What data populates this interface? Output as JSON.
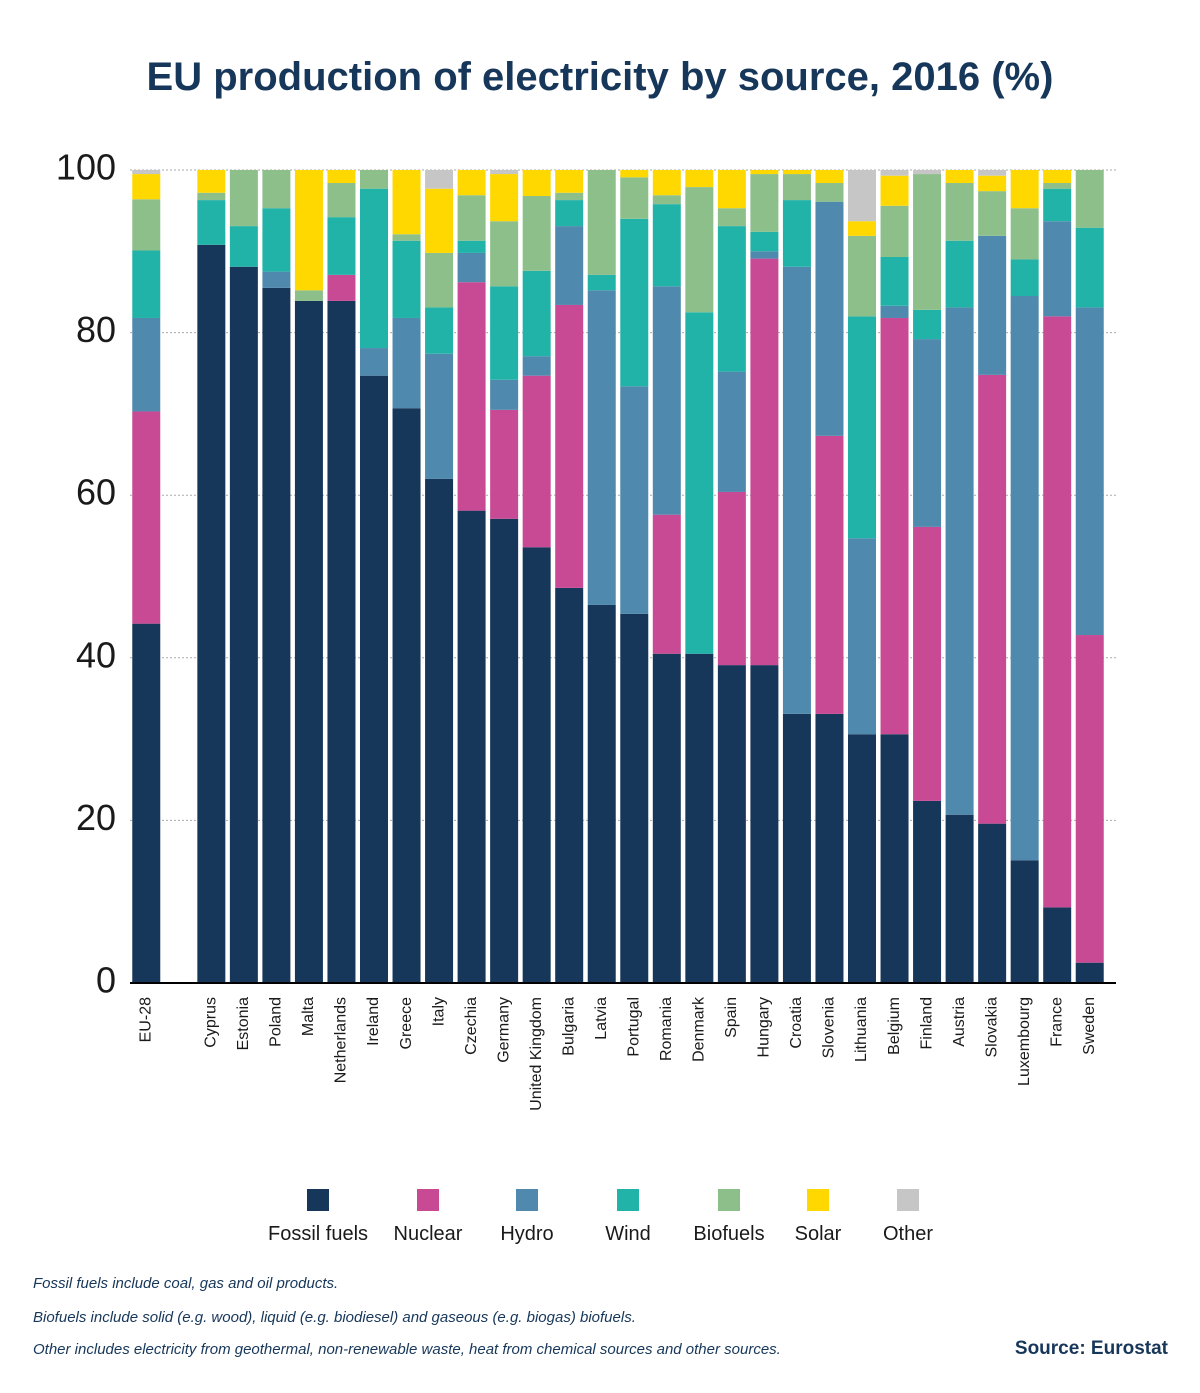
{
  "chart_data": {
    "type": "stacked_bar",
    "title": "EU production of electricity by source, 2016 (%)",
    "categories": [
      "EU-28",
      null,
      "Cyprus",
      "Estonia",
      "Poland",
      "Malta",
      "Netherlands",
      "Ireland",
      "Greece",
      "Italy",
      "Czechia",
      "Germany",
      "United Kingdom",
      "Bulgaria",
      "Latvia",
      "Portugal",
      "Romania",
      "Denmark",
      "Spain",
      "Hungary",
      "Croatia",
      "Slovenia",
      "Lithuania",
      "Belgium",
      "Finland",
      "Austria",
      "Slovakia",
      "Luxembourg",
      "France",
      "Sweden"
    ],
    "series": [
      {
        "name": "Fossil fuels",
        "color": "#17375a",
        "values": [
          44.2,
          null,
          90.8,
          88.1,
          85.5,
          83.9,
          83.9,
          74.7,
          70.7,
          62.0,
          58.1,
          57.1,
          53.6,
          48.6,
          46.5,
          45.4,
          40.5,
          40.5,
          39.1,
          39.1,
          33.1,
          33.1,
          30.6,
          30.6,
          22.4,
          20.7,
          19.6,
          15.1,
          9.3,
          2.5
        ]
      },
      {
        "name": "Nuclear",
        "color": "#c84a94",
        "values": [
          26.1,
          null,
          0,
          0,
          0,
          0,
          3.2,
          0,
          0,
          0,
          28.1,
          13.4,
          21.1,
          34.8,
          0,
          0,
          17.1,
          0,
          21.3,
          50.0,
          0,
          34.2,
          0,
          51.2,
          33.7,
          0,
          55.2,
          0,
          72.7,
          40.3
        ]
      },
      {
        "name": "Hydro",
        "color": "#4f89ad",
        "values": [
          11.5,
          null,
          0,
          0,
          2.0,
          0,
          0,
          3.4,
          11.1,
          15.4,
          3.6,
          3.7,
          2.4,
          9.7,
          38.7,
          28.0,
          28.1,
          0,
          14.8,
          0.9,
          55.0,
          28.8,
          24.1,
          1.5,
          23.1,
          62.4,
          17.1,
          69.4,
          11.7,
          40.3
        ]
      },
      {
        "name": "Wind",
        "color": "#22b3a8",
        "values": [
          8.3,
          null,
          5.5,
          5.0,
          7.8,
          0,
          7.1,
          19.6,
          9.5,
          5.7,
          1.5,
          11.5,
          10.5,
          3.2,
          1.9,
          20.6,
          10.1,
          42.0,
          17.9,
          2.4,
          8.2,
          0,
          27.3,
          6.0,
          3.6,
          8.2,
          0,
          4.5,
          4.0,
          9.8
        ]
      },
      {
        "name": "Biofuels",
        "color": "#8dbf8a",
        "values": [
          6.3,
          null,
          0.9,
          6.9,
          4.7,
          1.3,
          4.2,
          2.3,
          0.8,
          6.7,
          5.6,
          8.0,
          9.2,
          0.9,
          12.9,
          5.1,
          1.1,
          15.4,
          2.2,
          7.1,
          3.2,
          2.3,
          9.9,
          6.3,
          16.7,
          7.1,
          5.5,
          6.3,
          0.7,
          7.1
        ]
      },
      {
        "name": "Solar",
        "color": "#ffd800",
        "values": [
          3.1,
          null,
          2.8,
          0,
          0,
          14.8,
          1.6,
          0,
          7.9,
          7.9,
          3.1,
          5.8,
          3.2,
          2.8,
          0,
          0.9,
          3.1,
          2.1,
          4.7,
          0.5,
          0.5,
          1.6,
          1.8,
          3.7,
          0,
          1.6,
          1.9,
          4.7,
          1.6,
          0
        ]
      },
      {
        "name": "Other",
        "color": "#c6c6c6",
        "values": [
          0.5,
          null,
          0,
          0,
          0,
          0,
          0,
          0,
          0,
          2.3,
          0,
          0.5,
          0,
          0,
          0,
          0,
          0,
          0,
          0,
          0,
          0,
          0,
          6.3,
          0.7,
          0.5,
          0,
          0.7,
          0,
          0,
          0
        ]
      }
    ],
    "ylim": [
      0,
      100
    ],
    "yticks": [
      0,
      20,
      40,
      60,
      80,
      100
    ],
    "grid": true,
    "notes": [
      "Fossil fuels include coal, gas and oil products.",
      "Biofuels include solid (e.g. wood), liquid (e.g. biodiesel) and gaseous (e.g. biogas) biofuels.",
      "Other includes electricity from geothermal, non-renewable waste, heat from chemical sources and other sources."
    ],
    "source": "Source: Eurostat"
  }
}
